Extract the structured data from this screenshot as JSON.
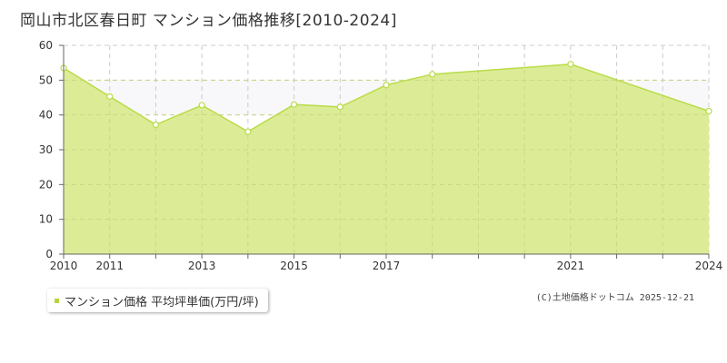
{
  "title": "岡山市北区春日町 マンション価格推移[2010-2024]",
  "copyright": "(C)土地価格ドットコム 2025-12-21",
  "colors": {
    "fill": "#dcec96",
    "line": "#b8dc48",
    "grid": "#cccccc",
    "axis": "#666666",
    "band": "#f8f7f9",
    "legend_marker": "#b5d43a"
  },
  "chart_data": {
    "type": "area",
    "title": "",
    "xlabel": "",
    "ylabel": "",
    "ylim": [
      0,
      60
    ],
    "xlim": [
      2010,
      2024
    ],
    "y_ticks": [
      "0",
      "10",
      "20",
      "30",
      "40",
      "50",
      "60"
    ],
    "x_tick_labels": [
      "2010",
      "2011",
      "2013",
      "2015",
      "2017",
      "2021",
      "2024"
    ],
    "grid": true,
    "legend": "bottom-left",
    "series": [
      {
        "name": "マンション価格 平均坪単価(万円/坪)",
        "x": [
          2010,
          2011,
          2012,
          2013,
          2014,
          2015,
          2016,
          2017,
          2018,
          2021,
          2024
        ],
        "values": [
          53.5,
          45.3,
          37.2,
          42.8,
          35.2,
          43.0,
          42.3,
          48.6,
          51.7,
          54.6,
          41.1
        ]
      }
    ]
  }
}
